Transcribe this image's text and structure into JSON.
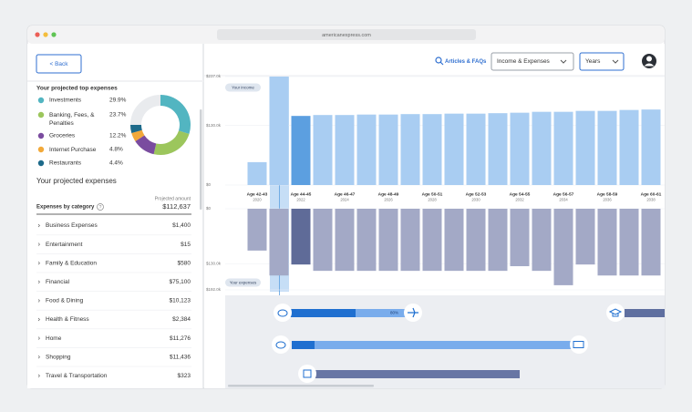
{
  "browser": {
    "url": "americanexpress.com"
  },
  "sidebar": {
    "back": "< Back",
    "top_expenses": {
      "title": "Your projected top expenses",
      "items": [
        {
          "name": "Investments",
          "value": 29.9,
          "value_label": "29.9%",
          "color": "#52b5c1"
        },
        {
          "name": "Banking, Fees, & Penalties",
          "value": 23.7,
          "value_label": "23.7%",
          "color": "#9cc65c"
        },
        {
          "name": "Groceries",
          "value": 12.2,
          "value_label": "12.2%",
          "color": "#7a4c9f"
        },
        {
          "name": "Internet Purchase",
          "value": 4.8,
          "value_label": "4.8%",
          "color": "#f2a93a"
        },
        {
          "name": "Restaurants",
          "value": 4.4,
          "value_label": "4.4%",
          "color": "#1d6a8a"
        }
      ]
    },
    "projected": {
      "title": "Your projected expenses",
      "by_category": "Expenses by category",
      "amount_label": "Projected amount",
      "total": "$112,637",
      "rows": [
        {
          "name": "Business Expenses",
          "amount": "$1,400"
        },
        {
          "name": "Entertainment",
          "amount": "$15"
        },
        {
          "name": "Family & Education",
          "amount": "$580"
        },
        {
          "name": "Financial",
          "amount": "$75,100"
        },
        {
          "name": "Food & Dining",
          "amount": "$10,123"
        },
        {
          "name": "Health & Fitness",
          "amount": "$2,384"
        },
        {
          "name": "Home",
          "amount": "$11,276"
        },
        {
          "name": "Shopping",
          "amount": "$11,436"
        },
        {
          "name": "Travel & Transportation",
          "amount": "$323"
        }
      ]
    }
  },
  "toolbar": {
    "articles": "Articles & FAQs",
    "view": "Income & Expenses",
    "period": "Years"
  },
  "chart": {
    "selected": 2,
    "income": {
      "label": "Your income",
      "color": "#a9cdf2",
      "selected_color": "#5c9fe0",
      "values": [
        50,
        237,
        151,
        153,
        153,
        154,
        154,
        155,
        155,
        156,
        156,
        157,
        158,
        160,
        160,
        162,
        162,
        164,
        165
      ],
      "ylim": [
        0,
        237
      ],
      "yticks": [
        {
          "value": 0,
          "label": "$0"
        },
        {
          "value": 130,
          "label": "$130.0k"
        },
        {
          "value": 237,
          "label": "$237.0k"
        }
      ]
    },
    "expenses": {
      "label": "Your expenses",
      "color": "#a3a9c6",
      "selected_color": "#5f6b98",
      "values": [
        99,
        158,
        132,
        147,
        147,
        147,
        147,
        147,
        147,
        147,
        147,
        147,
        136,
        147,
        181,
        132,
        158,
        158,
        158
      ],
      "ylim": [
        0,
        192
      ],
      "yticks": [
        {
          "value": 0,
          "label": "$0"
        },
        {
          "value": 130,
          "label": "$130.0k"
        },
        {
          "value": 192,
          "label": "$192.0k"
        }
      ]
    },
    "ages": [
      {
        "age": "Age 42-43",
        "year": "2020"
      },
      {
        "age": "Age 44-45",
        "year": "2022"
      },
      {
        "age": "Age 46-47",
        "year": "2024"
      },
      {
        "age": "Age 48-49",
        "year": "2026"
      },
      {
        "age": "Age 50-51",
        "year": "2028"
      },
      {
        "age": "Age 52-53",
        "year": "2030"
      },
      {
        "age": "Age 54-55",
        "year": "2032"
      },
      {
        "age": "Age 56-57",
        "year": "2034"
      },
      {
        "age": "Age 58-59",
        "year": "2036"
      },
      {
        "age": "Age 60-61",
        "year": "2038"
      }
    ],
    "timeline": {
      "progress": "80%"
    }
  }
}
